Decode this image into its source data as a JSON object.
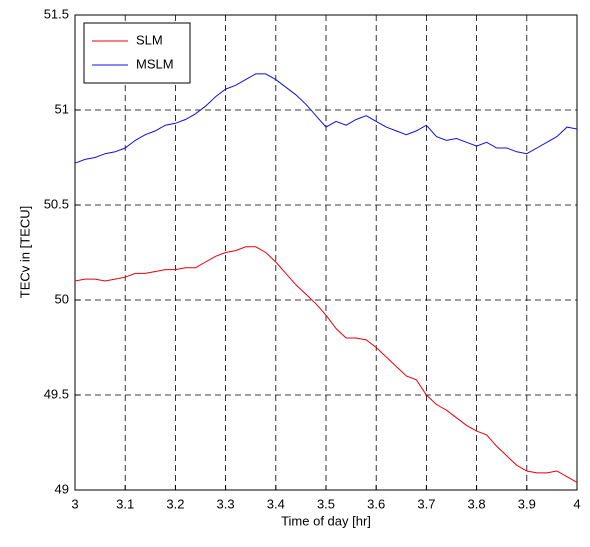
{
  "chart_data": {
    "type": "line",
    "xlabel": "Time of day  [hr]",
    "ylabel": "TECv in [TECU]",
    "x": [
      3.0,
      3.02,
      3.04,
      3.06,
      3.08,
      3.1,
      3.12,
      3.14,
      3.16,
      3.18,
      3.2,
      3.22,
      3.24,
      3.26,
      3.28,
      3.3,
      3.32,
      3.34,
      3.36,
      3.38,
      3.4,
      3.42,
      3.44,
      3.46,
      3.48,
      3.5,
      3.52,
      3.54,
      3.56,
      3.58,
      3.6,
      3.62,
      3.64,
      3.66,
      3.68,
      3.7,
      3.72,
      3.74,
      3.76,
      3.78,
      3.8,
      3.82,
      3.84,
      3.86,
      3.88,
      3.9,
      3.92,
      3.94,
      3.96,
      3.98,
      4.0
    ],
    "series": [
      {
        "name": "SLM",
        "color": "#e8000b",
        "values": [
          50.1,
          50.11,
          50.11,
          50.1,
          50.11,
          50.12,
          50.14,
          50.14,
          50.15,
          50.16,
          50.16,
          50.17,
          50.17,
          50.2,
          50.23,
          50.25,
          50.26,
          50.28,
          50.28,
          50.25,
          50.2,
          50.14,
          50.08,
          50.03,
          49.98,
          49.92,
          49.85,
          49.8,
          49.8,
          49.79,
          49.75,
          49.7,
          49.65,
          49.6,
          49.58,
          49.5,
          49.45,
          49.42,
          49.38,
          49.34,
          49.31,
          49.29,
          49.23,
          49.18,
          49.13,
          49.1,
          49.09,
          49.09,
          49.1,
          49.07,
          49.04
        ]
      },
      {
        "name": "MSLM",
        "color": "#1010e0",
        "values": [
          50.72,
          50.74,
          50.75,
          50.77,
          50.78,
          50.8,
          50.84,
          50.87,
          50.89,
          50.92,
          50.93,
          50.95,
          50.98,
          51.02,
          51.07,
          51.11,
          51.13,
          51.16,
          51.19,
          51.19,
          51.16,
          51.12,
          51.08,
          51.03,
          50.97,
          50.91,
          50.94,
          50.92,
          50.95,
          50.97,
          50.94,
          50.91,
          50.89,
          50.87,
          50.89,
          50.92,
          50.86,
          50.84,
          50.85,
          50.83,
          50.81,
          50.83,
          50.8,
          50.8,
          50.78,
          50.77,
          50.8,
          50.83,
          50.86,
          50.91,
          50.9
        ]
      }
    ],
    "xlim": [
      3,
      4
    ],
    "xticks": [
      3,
      3.1,
      3.2,
      3.3,
      3.4,
      3.5,
      3.6,
      3.7,
      3.8,
      3.9,
      4
    ],
    "ylim": [
      49,
      51.5
    ],
    "yticks": [
      49,
      49.5,
      50,
      50.5,
      51,
      51.5
    ],
    "grid": true,
    "legend": "upper-left"
  }
}
